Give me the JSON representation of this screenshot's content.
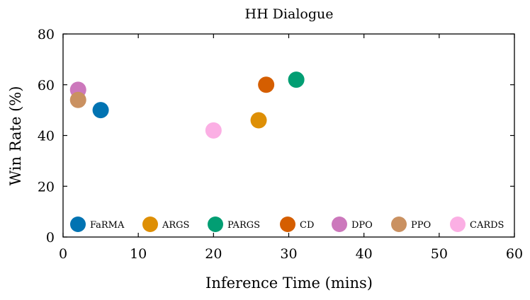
{
  "chart_data": {
    "type": "scatter",
    "title": "HH Dialogue",
    "xlabel": "Inference Time (mins)",
    "ylabel": "Win Rate (%)",
    "xlim": [
      0,
      60
    ],
    "ylim": [
      0,
      80
    ],
    "xticks": [
      0,
      10,
      20,
      30,
      40,
      50,
      60
    ],
    "yticks": [
      0,
      20,
      40,
      60,
      80
    ],
    "grid": false,
    "legend_position": "bottom, inside plot, single row",
    "series": [
      {
        "name": "FaRMA",
        "color": "#0173b2",
        "points": [
          {
            "x": 5,
            "y": 50
          }
        ]
      },
      {
        "name": "ARGS",
        "color": "#de8f05",
        "points": [
          {
            "x": 26,
            "y": 46
          }
        ]
      },
      {
        "name": "PARGS",
        "color": "#029e73",
        "points": [
          {
            "x": 31,
            "y": 62
          }
        ]
      },
      {
        "name": "CD",
        "color": "#d55e00",
        "points": [
          {
            "x": 27,
            "y": 60
          }
        ]
      },
      {
        "name": "DPO",
        "color": "#cc78bc",
        "points": [
          {
            "x": 2,
            "y": 58
          }
        ]
      },
      {
        "name": "PPO",
        "color": "#ca9161",
        "points": [
          {
            "x": 2,
            "y": 54
          }
        ]
      },
      {
        "name": "CARDS",
        "color": "#fbafe4",
        "points": [
          {
            "x": 20,
            "y": 42
          }
        ]
      }
    ]
  }
}
